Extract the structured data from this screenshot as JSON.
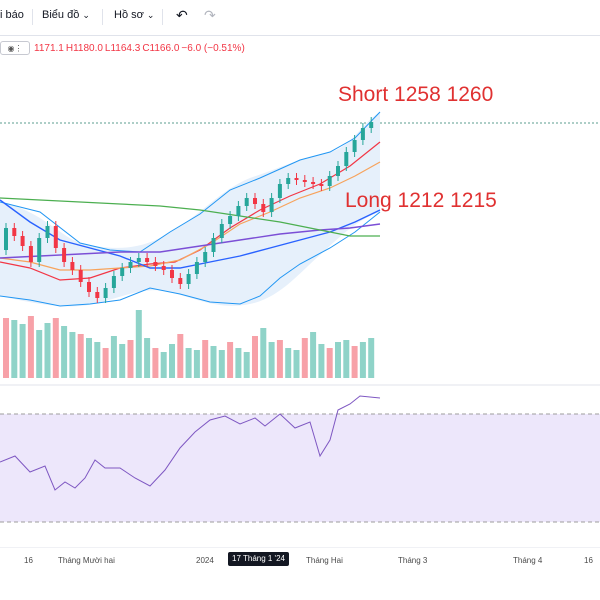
{
  "toolbar": {
    "indicators_label": "i báo",
    "chart_label": "Biểu đồ",
    "profile_label": "Hồ sơ"
  },
  "ohlc": {
    "open": "1171.1",
    "high": "H1180.0",
    "low": "L1164.3",
    "close": "C1166.0",
    "change": "−6.0 (−0.51%)"
  },
  "annotations": {
    "short_text": "Short 1258 1260",
    "long_text": "Long 1212 1215"
  },
  "time_axis": {
    "labels": [
      "16",
      "Tháng Mười hai",
      "2024",
      "Tháng Hai",
      "Tháng 3",
      "Tháng 4",
      "16"
    ],
    "cursor_label": "17 Tháng 1 '24"
  },
  "colors": {
    "up": "#26a69a",
    "down": "#f23645",
    "ma_red": "#f23645",
    "ma_orange": "#f7a35c",
    "ma_blue": "#2962ff",
    "ma_purple": "#7b4fd6",
    "ma_green": "#4caf50",
    "bollinger": "#2196f3",
    "bollinger_fill": "#e6f0fb",
    "rsi_line": "#7e57c2",
    "rsi_band": "#ede7fb",
    "annotation": "#e03131"
  },
  "icons": {
    "undo": "undo-arrow-icon",
    "redo": "redo-arrow-icon",
    "visibility": "eye-icon"
  }
}
